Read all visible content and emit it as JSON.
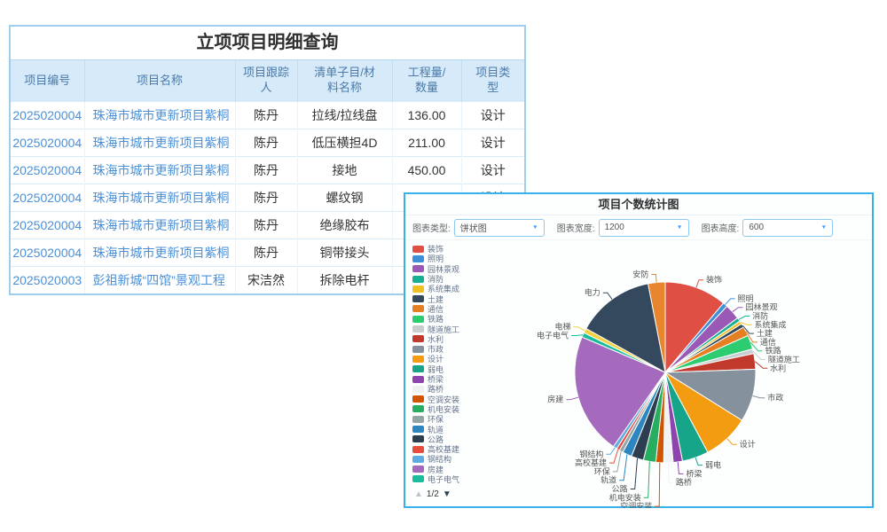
{
  "table_window": {
    "title": "立项项目明细查询",
    "columns": [
      "项目编号",
      "项目名称",
      "项目跟踪人",
      "清单子目/材料名称",
      "工程量/数量",
      "项目类型"
    ],
    "rows": [
      {
        "code": "2025020004",
        "name": "珠海市城市更新项目紫桐",
        "tracker": "陈丹",
        "item": "拉线/拉线盘",
        "qty": "136.00",
        "type": "设计"
      },
      {
        "code": "2025020004",
        "name": "珠海市城市更新项目紫桐",
        "tracker": "陈丹",
        "item": "低压横担4D",
        "qty": "211.00",
        "type": "设计"
      },
      {
        "code": "2025020004",
        "name": "珠海市城市更新项目紫桐",
        "tracker": "陈丹",
        "item": "接地",
        "qty": "450.00",
        "type": "设计"
      },
      {
        "code": "2025020004",
        "name": "珠海市城市更新项目紫桐",
        "tracker": "陈丹",
        "item": "螺纹钢",
        "qty": "12.00",
        "type": "设计"
      },
      {
        "code": "2025020004",
        "name": "珠海市城市更新项目紫桐",
        "tracker": "陈丹",
        "item": "绝缘胶布",
        "qty": "",
        "type": ""
      },
      {
        "code": "2025020004",
        "name": "珠海市城市更新项目紫桐",
        "tracker": "陈丹",
        "item": "铜带接头",
        "qty": "",
        "type": ""
      },
      {
        "code": "2025020003",
        "name": "彭祖新城“四馆”景观工程",
        "tracker": "宋洁然",
        "item": "拆除电杆",
        "qty": "",
        "type": ""
      }
    ]
  },
  "chart_window": {
    "title": "项目个数统计图",
    "controls": [
      {
        "label": "图表类型:",
        "value": "饼状图"
      },
      {
        "label": "图表宽度:",
        "value": "1200"
      },
      {
        "label": "图表高度:",
        "value": "600"
      }
    ],
    "pager": {
      "up": "▲",
      "page": "1/2",
      "down": "▼"
    }
  },
  "chart_data": {
    "type": "pie",
    "title": "项目个数统计图",
    "legend_position": "left",
    "legend_page": "1/2",
    "note": "slice sizes estimated from rendered angles (degrees); source counts not shown on screen",
    "start_deg": -11,
    "slices": [
      {
        "name": "安防",
        "color": "#e8862d",
        "deg": 11
      },
      {
        "name": "装饰",
        "color": "#e04f43",
        "deg": 40
      },
      {
        "name": "照明",
        "color": "#3d8fd8",
        "deg": 3
      },
      {
        "name": "园林景观",
        "color": "#9b59b6",
        "deg": 10
      },
      {
        "name": "消防",
        "color": "#18b094",
        "deg": 2.5
      },
      {
        "name": "系统集成",
        "color": "#f0c020",
        "deg": 2
      },
      {
        "name": "土建",
        "color": "#34495e",
        "deg": 2.5
      },
      {
        "name": "通信",
        "color": "#e67e22",
        "deg": 6
      },
      {
        "name": "铁路",
        "color": "#2ecc71",
        "deg": 9
      },
      {
        "name": "隧道施工",
        "color": "#c8cdd0",
        "deg": 3
      },
      {
        "name": "水利",
        "color": "#c0392b",
        "deg": 10
      },
      {
        "name": "市政",
        "color": "#85929e",
        "deg": 34
      },
      {
        "name": "设计",
        "color": "#f39c12",
        "deg": 30
      },
      {
        "name": "弱电",
        "color": "#17a589",
        "deg": 17
      },
      {
        "name": "桥梁",
        "color": "#8e44ad",
        "deg": 6
      },
      {
        "name": "路桥",
        "color": "#f0f3f4",
        "deg": 6
      },
      {
        "name": "空调安装",
        "color": "#d35400",
        "deg": 5
      },
      {
        "name": "机电安装",
        "color": "#27ae60",
        "deg": 8
      },
      {
        "name": "公路",
        "color": "#2c3e50",
        "deg": 8
      },
      {
        "name": "轨道",
        "color": "#2e86c1",
        "deg": 6
      },
      {
        "name": "环保",
        "color": "#95a5a6",
        "deg": 2.5
      },
      {
        "name": "高校基建",
        "color": "#e74c3c",
        "deg": 2
      },
      {
        "name": "钢结构",
        "color": "#5dade2",
        "deg": 2.5
      },
      {
        "name": "房建",
        "color": "#a569bd",
        "deg": 78
      },
      {
        "name": "电子电气",
        "color": "#1abc9c",
        "deg": 3
      },
      {
        "name": "电梯",
        "color": "#f4d03f",
        "deg": 3
      },
      {
        "name": "电力",
        "color": "#34495e",
        "deg": 50
      }
    ],
    "legend": [
      {
        "name": "装饰",
        "color": "#e04f43"
      },
      {
        "name": "照明",
        "color": "#3d8fd8"
      },
      {
        "name": "园林景观",
        "color": "#9b59b6"
      },
      {
        "name": "消防",
        "color": "#18b094"
      },
      {
        "name": "系统集成",
        "color": "#f0c020"
      },
      {
        "name": "土建",
        "color": "#34495e"
      },
      {
        "name": "通信",
        "color": "#e67e22"
      },
      {
        "name": "铁路",
        "color": "#2ecc71"
      },
      {
        "name": "隧道施工",
        "color": "#c8cdd0"
      },
      {
        "name": "水利",
        "color": "#c0392b"
      },
      {
        "name": "市政",
        "color": "#85929e"
      },
      {
        "name": "设计",
        "color": "#f39c12"
      },
      {
        "name": "弱电",
        "color": "#17a589"
      },
      {
        "name": "桥梁",
        "color": "#8e44ad"
      },
      {
        "name": "路桥",
        "color": "#eef1f2"
      },
      {
        "name": "空调安装",
        "color": "#d35400"
      },
      {
        "name": "机电安装",
        "color": "#27ae60"
      },
      {
        "name": "环保",
        "color": "#95a5a6"
      },
      {
        "name": "轨道",
        "color": "#2e86c1"
      },
      {
        "name": "公路",
        "color": "#2c3e50"
      },
      {
        "name": "高校基建",
        "color": "#e74c3c"
      },
      {
        "name": "钢结构",
        "color": "#5dade2"
      },
      {
        "name": "房建",
        "color": "#a569bd"
      },
      {
        "name": "电子电气",
        "color": "#1abc9c"
      }
    ]
  }
}
